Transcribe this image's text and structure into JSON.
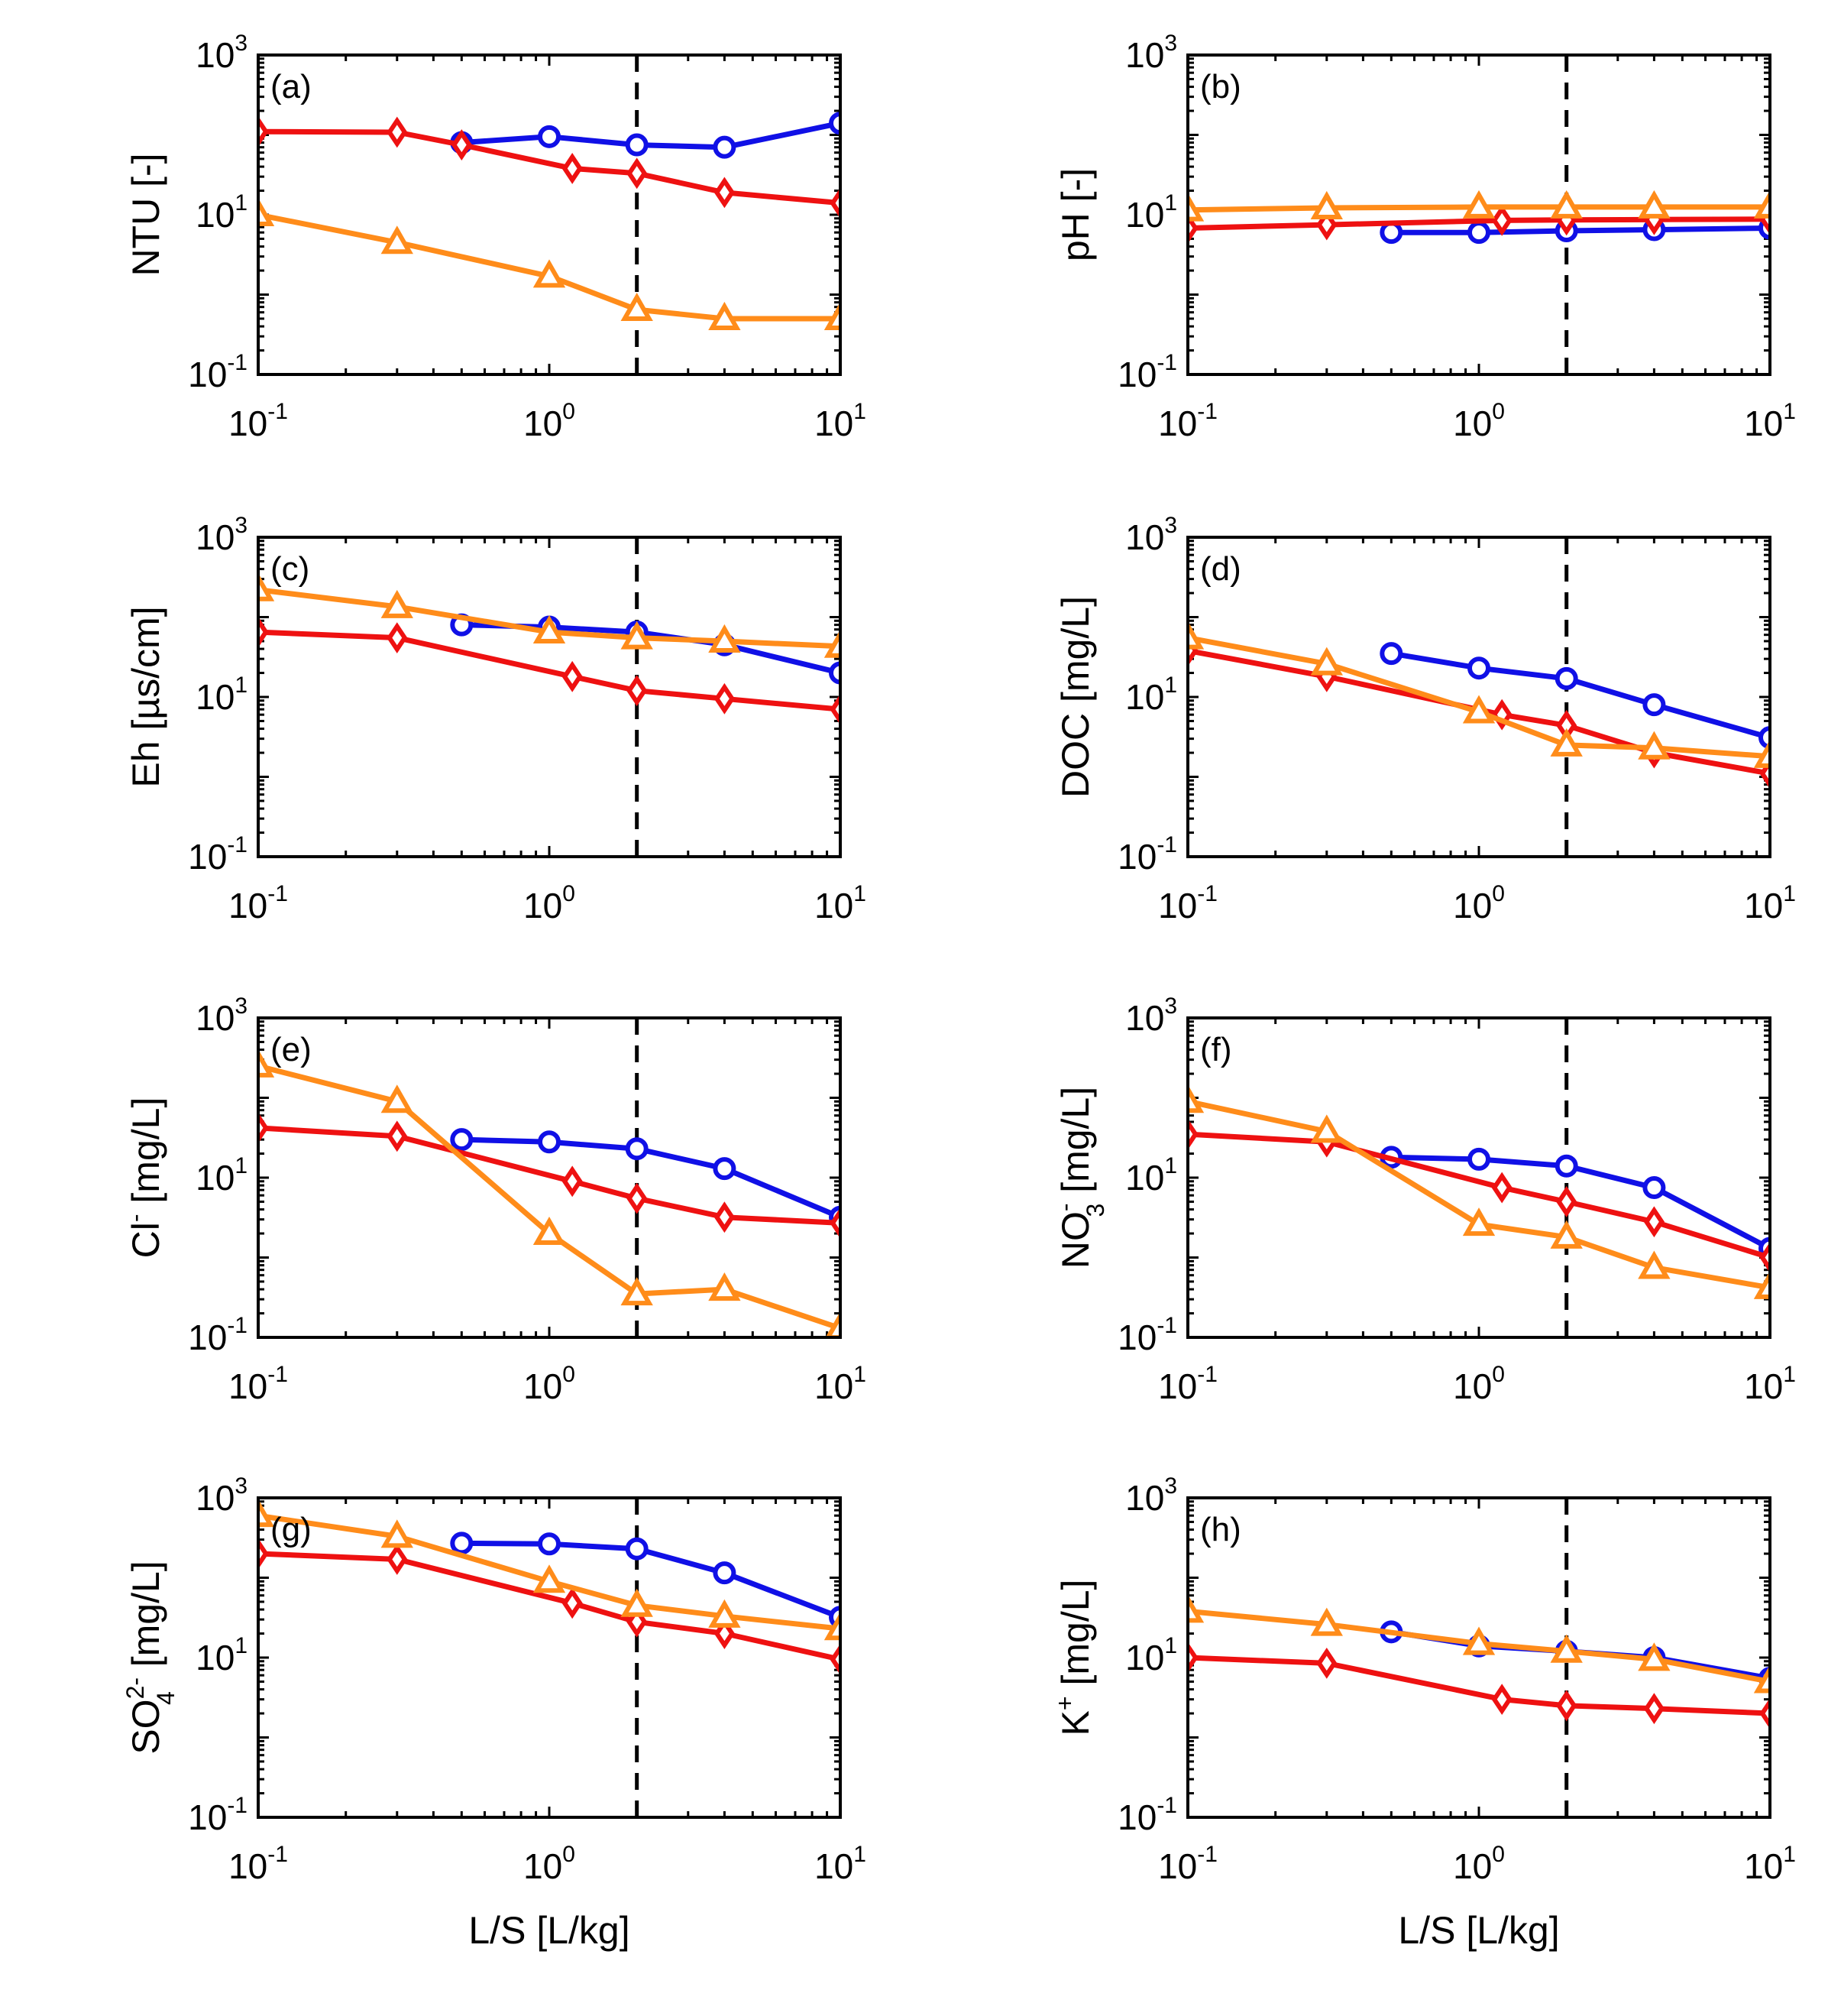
{
  "figure": {
    "x_label": "L/S [L/kg]",
    "vertical_marker_x": 2
  },
  "colors": {
    "blue": "#1010e6",
    "red": "#ee1111",
    "orange": "#ff8c1a"
  },
  "tick_labels": {
    "x": [
      {
        "base": "10",
        "exp": "-1",
        "value": 0.1
      },
      {
        "base": "10",
        "exp": "0",
        "value": 1
      },
      {
        "base": "10",
        "exp": "1",
        "value": 10
      }
    ],
    "y": [
      {
        "base": "10",
        "exp": "-1",
        "value": 0.1
      },
      {
        "base": "10",
        "exp": "1",
        "value": 10
      },
      {
        "base": "10",
        "exp": "3",
        "value": 1000
      }
    ]
  },
  "chart_data": [
    {
      "type": "line",
      "panel": "(a)",
      "title": "",
      "ylabel": {
        "main": "NTU [-]",
        "sup": "",
        "sub": "",
        "tail": ""
      },
      "xlabel": "",
      "xscale": "log",
      "yscale": "log",
      "xlim": [
        0.1,
        10
      ],
      "ylim": [
        0.1,
        1000
      ],
      "series": [
        {
          "name": "blue",
          "marker": "circle",
          "x": [
            0.5,
            1.0,
            2.0,
            4.0,
            10.0
          ],
          "y": [
            80,
            95,
            75,
            70,
            140
          ]
        },
        {
          "name": "red",
          "marker": "diamond",
          "x": [
            0.1,
            0.3,
            0.5,
            1.2,
            2.0,
            4.0,
            10.0
          ],
          "y": [
            110,
            108,
            75,
            38,
            33,
            19,
            14
          ]
        },
        {
          "name": "orange",
          "marker": "triangle",
          "x": [
            0.1,
            0.3,
            1.0,
            2.0,
            4.0,
            10.0
          ],
          "y": [
            10,
            4.5,
            1.7,
            0.65,
            0.5,
            0.5
          ]
        }
      ]
    },
    {
      "type": "line",
      "panel": "(b)",
      "title": "",
      "ylabel": {
        "main": "pH [-]",
        "sup": "",
        "sub": "",
        "tail": ""
      },
      "xlabel": "",
      "xscale": "log",
      "yscale": "log",
      "xlim": [
        0.1,
        10
      ],
      "ylim": [
        0.1,
        1000
      ],
      "series": [
        {
          "name": "blue",
          "marker": "circle",
          "x": [
            0.5,
            1.0,
            2.0,
            4.0,
            10.0
          ],
          "y": [
            6.0,
            6.0,
            6.3,
            6.5,
            6.8
          ]
        },
        {
          "name": "red",
          "marker": "diamond",
          "x": [
            0.1,
            0.3,
            1.2,
            2.0,
            4.0,
            10.0
          ],
          "y": [
            6.8,
            7.5,
            8.5,
            8.6,
            8.7,
            8.8
          ]
        },
        {
          "name": "orange",
          "marker": "triangle",
          "x": [
            0.1,
            0.3,
            1.0,
            2.0,
            4.0,
            10.0
          ],
          "y": [
            11.5,
            12.2,
            12.5,
            12.5,
            12.5,
            12.5
          ]
        }
      ]
    },
    {
      "type": "line",
      "panel": "(c)",
      "title": "",
      "ylabel": {
        "main": "Eh [µs/cm]",
        "sup": "",
        "sub": "",
        "tail": ""
      },
      "xlabel": "",
      "xscale": "log",
      "yscale": "log",
      "xlim": [
        0.1,
        10
      ],
      "ylim": [
        0.1,
        1000
      ],
      "series": [
        {
          "name": "blue",
          "marker": "circle",
          "x": [
            0.5,
            1.0,
            2.0,
            4.0,
            10.0
          ],
          "y": [
            80,
            75,
            65,
            45,
            20
          ]
        },
        {
          "name": "red",
          "marker": "diamond",
          "x": [
            0.1,
            0.3,
            1.2,
            2.0,
            4.0,
            10.0
          ],
          "y": [
            65,
            55,
            18,
            12,
            9.5,
            7.0
          ]
        },
        {
          "name": "orange",
          "marker": "triangle",
          "x": [
            0.1,
            0.3,
            1.0,
            2.0,
            4.0,
            10.0
          ],
          "y": [
            220,
            135,
            65,
            55,
            50,
            43
          ]
        }
      ]
    },
    {
      "type": "line",
      "panel": "(d)",
      "title": "",
      "ylabel": {
        "main": "DOC [mg/L]",
        "sup": "",
        "sub": "",
        "tail": ""
      },
      "xlabel": "",
      "xscale": "log",
      "yscale": "log",
      "xlim": [
        0.1,
        10
      ],
      "ylim": [
        0.1,
        1000
      ],
      "series": [
        {
          "name": "blue",
          "marker": "circle",
          "x": [
            0.5,
            1.0,
            2.0,
            4.0,
            10.0
          ],
          "y": [
            35,
            23,
            17,
            8.0,
            3.1
          ]
        },
        {
          "name": "red",
          "marker": "diamond",
          "x": [
            0.1,
            0.3,
            1.2,
            2.0,
            4.0,
            10.0
          ],
          "y": [
            38,
            18,
            6.0,
            4.4,
            2.0,
            1.1
          ]
        },
        {
          "name": "orange",
          "marker": "triangle",
          "x": [
            0.1,
            0.3,
            1.0,
            2.0,
            4.0,
            10.0
          ],
          "y": [
            55,
            26,
            6.5,
            2.5,
            2.3,
            1.8
          ]
        }
      ]
    },
    {
      "type": "line",
      "panel": "(e)",
      "title": "",
      "ylabel": {
        "main": "Cl",
        "sup": "-",
        "sub": "",
        "tail": " [mg/L]"
      },
      "xlabel": "",
      "xscale": "log",
      "yscale": "log",
      "xlim": [
        0.1,
        10
      ],
      "ylim": [
        0.1,
        1000
      ],
      "series": [
        {
          "name": "blue",
          "marker": "circle",
          "x": [
            0.5,
            1.0,
            2.0,
            4.0,
            10.0
          ],
          "y": [
            30,
            28,
            23,
            13,
            3.2
          ]
        },
        {
          "name": "red",
          "marker": "diamond",
          "x": [
            0.1,
            0.3,
            1.2,
            2.0,
            4.0,
            10.0
          ],
          "y": [
            42,
            33,
            9.0,
            5.5,
            3.2,
            2.7
          ]
        },
        {
          "name": "orange",
          "marker": "triangle",
          "x": [
            0.1,
            0.3,
            1.0,
            2.0,
            4.0,
            10.0
          ],
          "y": [
            250,
            90,
            2.0,
            0.35,
            0.4,
            0.13
          ]
        }
      ]
    },
    {
      "type": "line",
      "panel": "(f)",
      "title": "",
      "ylabel": {
        "main": "NO",
        "sup": "-",
        "sub": "3",
        "tail": " [mg/L]"
      },
      "xlabel": "",
      "xscale": "log",
      "yscale": "log",
      "xlim": [
        0.1,
        10
      ],
      "ylim": [
        0.1,
        1000
      ],
      "series": [
        {
          "name": "blue",
          "marker": "circle",
          "x": [
            0.5,
            1.0,
            2.0,
            4.0,
            10.0
          ],
          "y": [
            18,
            17,
            14,
            7.5,
            1.3
          ]
        },
        {
          "name": "red",
          "marker": "diamond",
          "x": [
            0.1,
            0.3,
            1.2,
            2.0,
            4.0,
            10.0
          ],
          "y": [
            35,
            28,
            7.5,
            5.0,
            2.8,
            1.0
          ]
        },
        {
          "name": "orange",
          "marker": "triangle",
          "x": [
            0.1,
            0.3,
            1.0,
            2.0,
            4.0,
            10.0
          ],
          "y": [
            90,
            38,
            2.6,
            1.8,
            0.75,
            0.42
          ]
        }
      ]
    },
    {
      "type": "line",
      "panel": "(g)",
      "title": "",
      "ylabel": {
        "main": "SO",
        "sup": "2-",
        "sub": "4",
        "tail": " [mg/L]"
      },
      "xlabel": "L/S [L/kg]",
      "xscale": "log",
      "yscale": "log",
      "xlim": [
        0.1,
        10
      ],
      "ylim": [
        0.1,
        1000
      ],
      "series": [
        {
          "name": "blue",
          "marker": "circle",
          "x": [
            0.5,
            1.0,
            2.0,
            4.0,
            10.0
          ],
          "y": [
            270,
            265,
            230,
            115,
            32
          ]
        },
        {
          "name": "red",
          "marker": "diamond",
          "x": [
            0.1,
            0.3,
            1.2,
            2.0,
            4.0,
            10.0
          ],
          "y": [
            200,
            170,
            48,
            28,
            20,
            9.5
          ]
        },
        {
          "name": "orange",
          "marker": "triangle",
          "x": [
            0.1,
            0.3,
            1.0,
            2.0,
            4.0,
            10.0
          ],
          "y": [
            600,
            330,
            90,
            45,
            33,
            23
          ]
        }
      ]
    },
    {
      "type": "line",
      "panel": "(h)",
      "title": "",
      "ylabel": {
        "main": "K",
        "sup": "+",
        "sub": "",
        "tail": " [mg/L]"
      },
      "xlabel": "L/S [L/kg]",
      "xscale": "log",
      "yscale": "log",
      "xlim": [
        0.1,
        10
      ],
      "ylim": [
        0.1,
        1000
      ],
      "series": [
        {
          "name": "blue",
          "marker": "circle",
          "x": [
            0.5,
            1.0,
            2.0,
            4.0,
            10.0
          ],
          "y": [
            21,
            14,
            12,
            10,
            5.5
          ]
        },
        {
          "name": "red",
          "marker": "diamond",
          "x": [
            0.1,
            0.3,
            1.2,
            2.0,
            4.0,
            10.0
          ],
          "y": [
            10,
            8.5,
            3.0,
            2.5,
            2.3,
            2.0
          ]
        },
        {
          "name": "orange",
          "marker": "triangle",
          "x": [
            0.1,
            0.3,
            1.0,
            2.0,
            4.0,
            10.0
          ],
          "y": [
            38,
            26,
            15,
            12,
            9.5,
            5.0
          ]
        }
      ]
    }
  ]
}
